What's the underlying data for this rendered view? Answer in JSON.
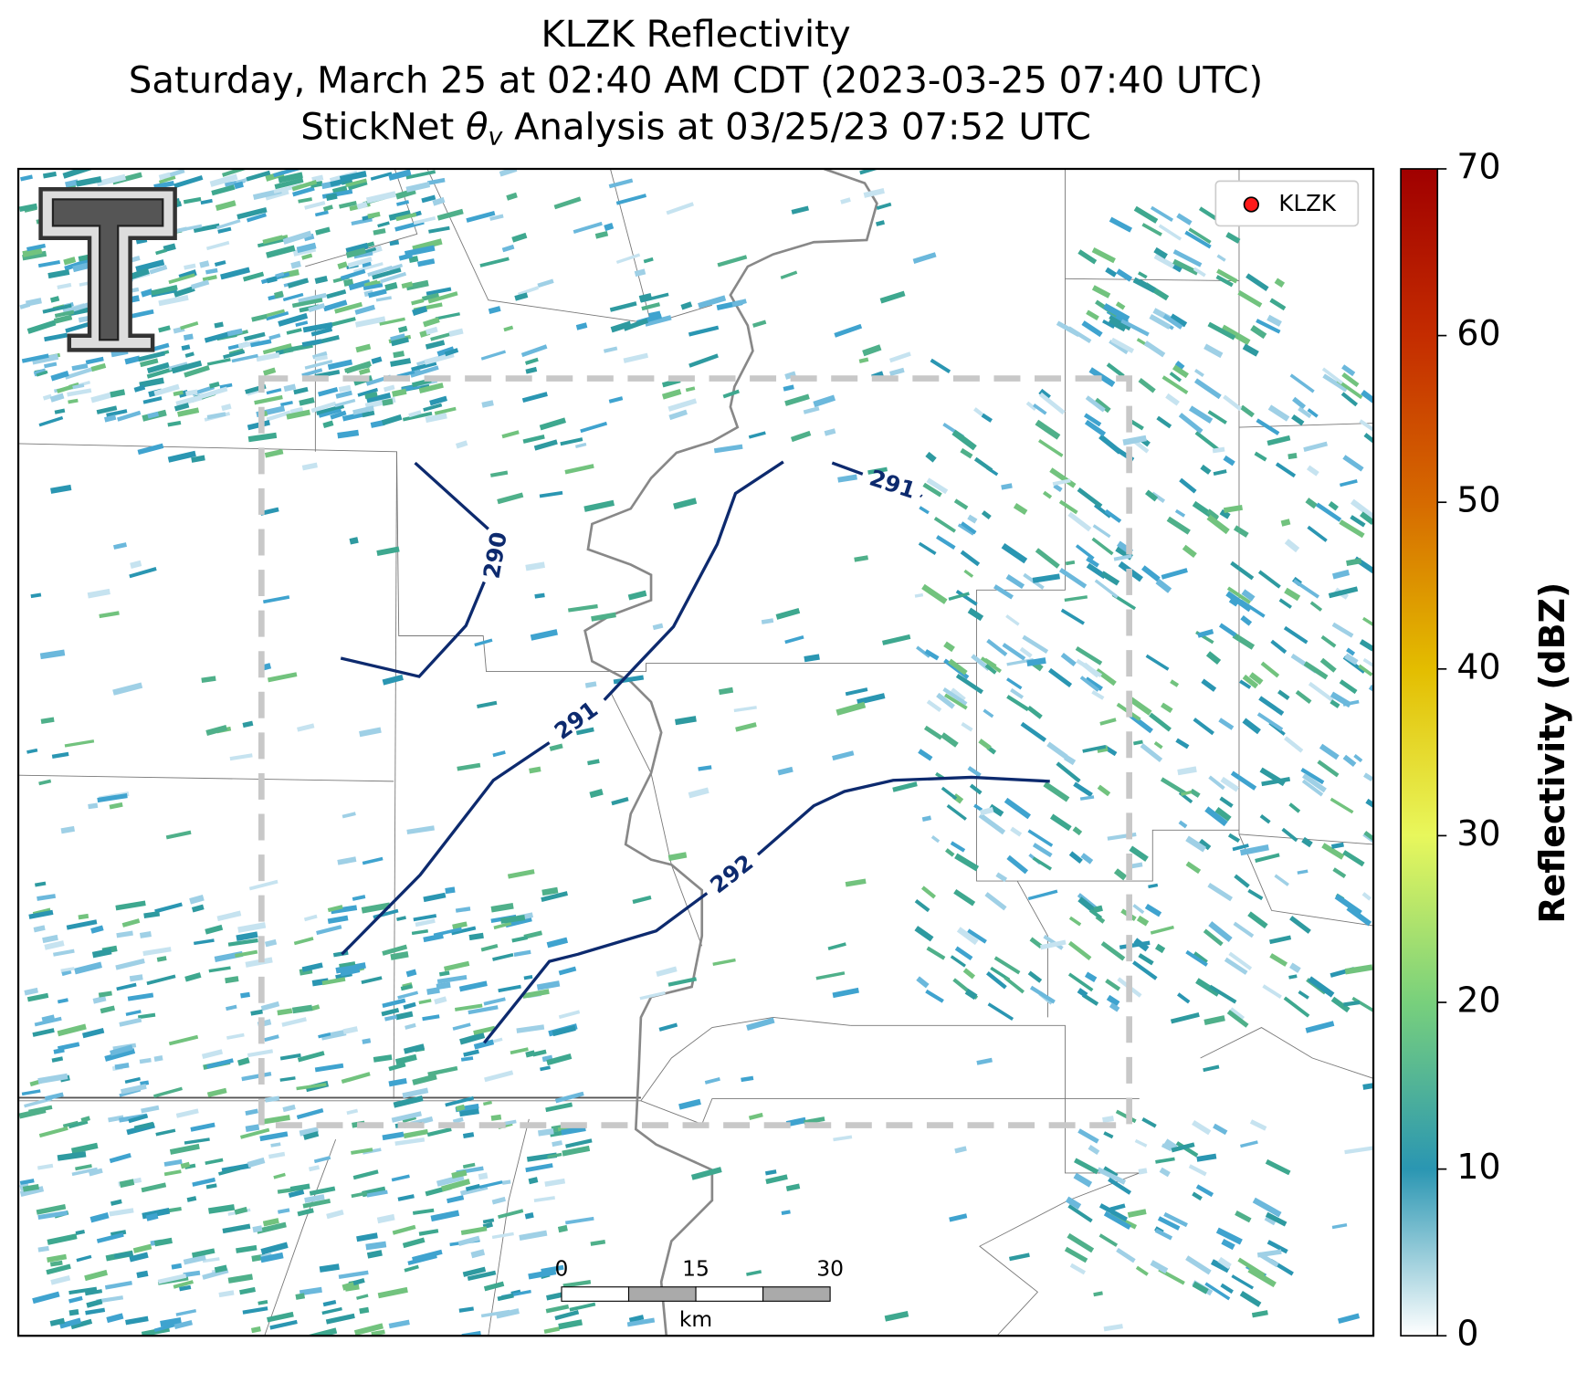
{
  "header": {
    "title": "KLZK Reflectivity",
    "subtitle": "Saturday, March 25 at 02:40 AM CDT (2023-03-25 07:40 UTC)",
    "analysis": {
      "prefix": "StickNet ",
      "symbol": "θ",
      "subscript": "v",
      "suffix": " Analysis at 03/25/23 07:52 UTC"
    }
  },
  "legend": {
    "label": "KLZK",
    "color": "#ff1a1a"
  },
  "contour_labels": [
    "290",
    "291",
    "291",
    "292"
  ],
  "scale_bar": {
    "ticks": [
      "0",
      "15",
      "30"
    ],
    "unit": "km"
  },
  "colorbar": {
    "label": "Reflectivity (dBZ)",
    "lim": [
      0,
      70
    ],
    "ticks": [
      0,
      10,
      20,
      30,
      40,
      50,
      60,
      70
    ],
    "colors": [
      "#ffffff",
      "#2a96b2",
      "#78d07c",
      "#e8f75c",
      "#e3bd00",
      "#d66a00",
      "#c42c00",
      "#a00000"
    ]
  }
}
